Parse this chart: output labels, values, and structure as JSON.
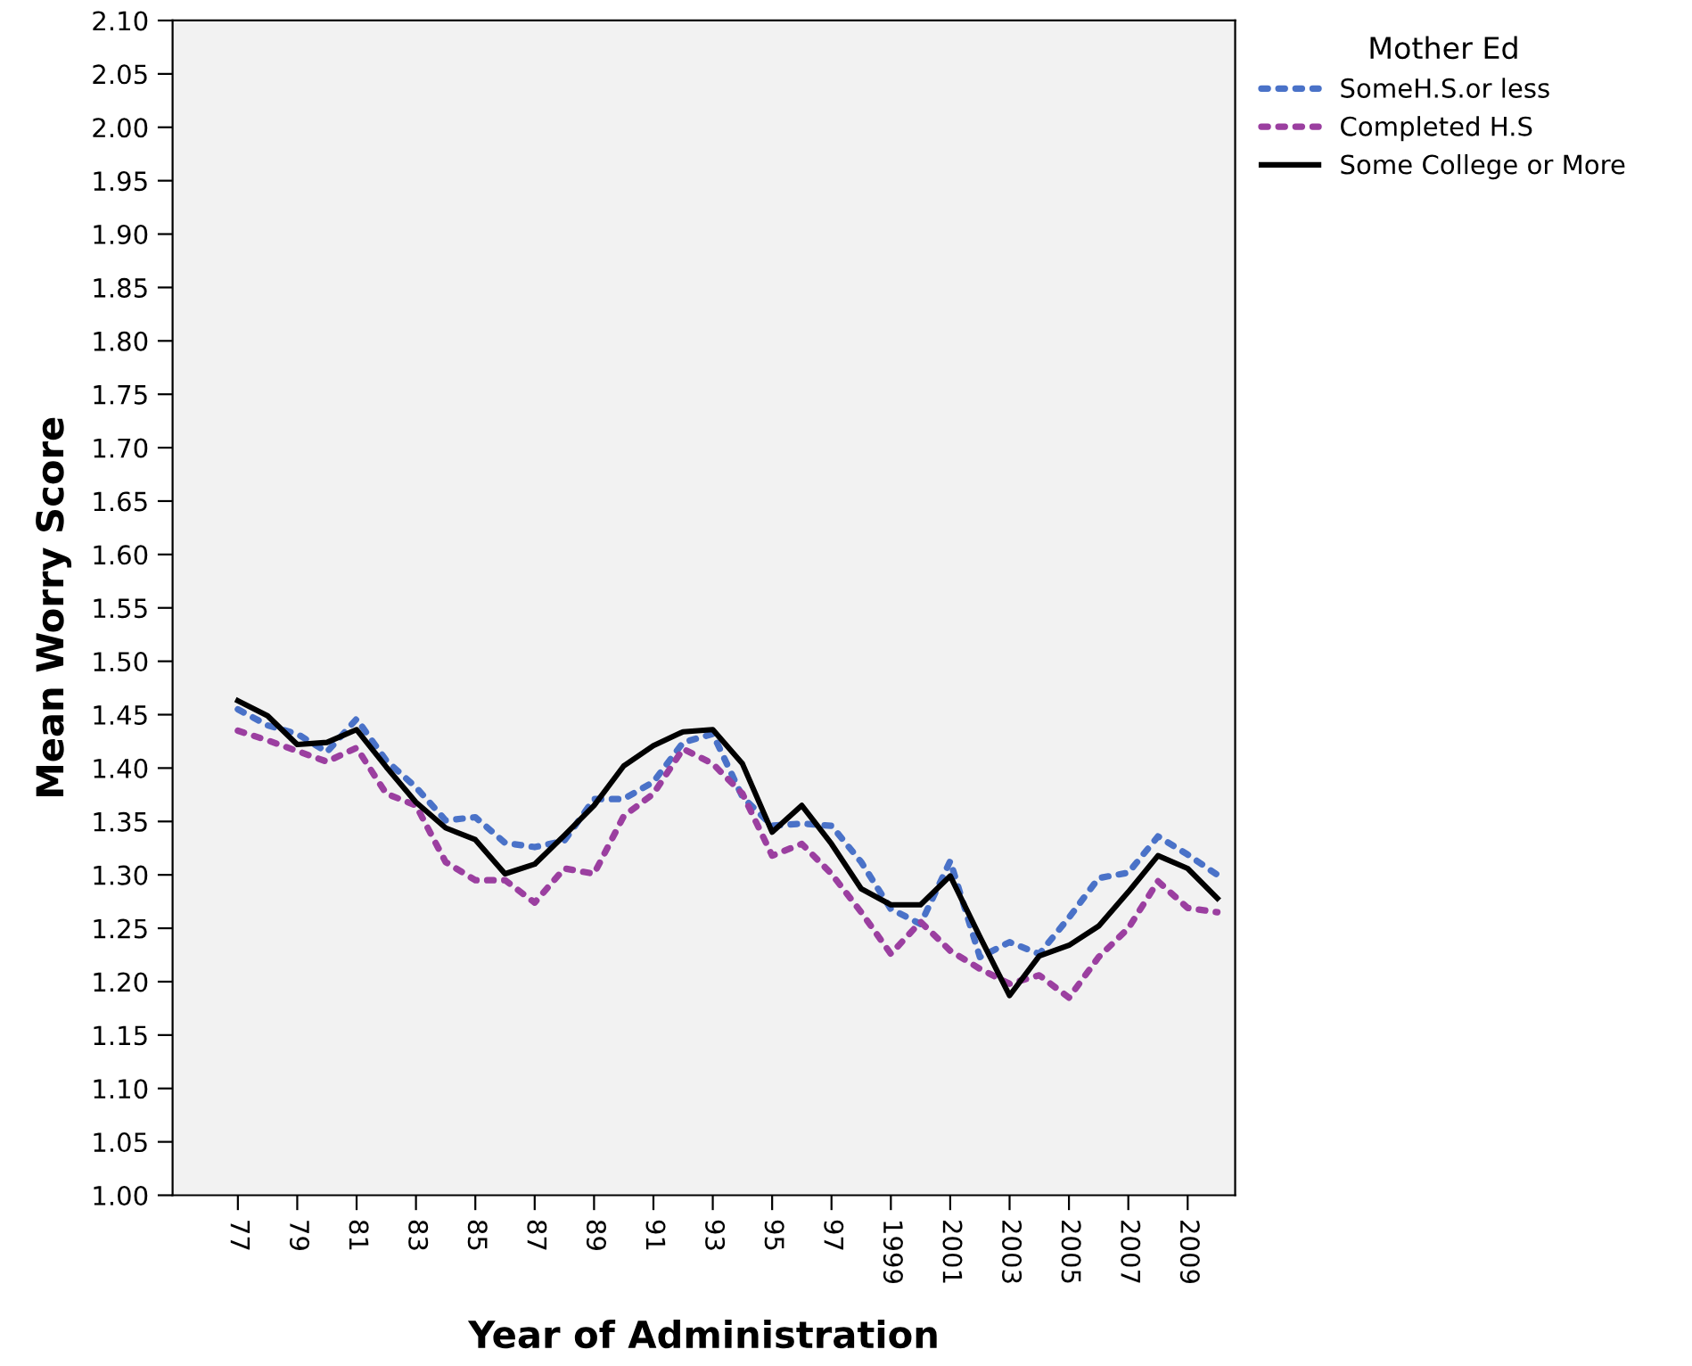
{
  "chart_data": {
    "type": "line",
    "xlabel": "Year of Administration",
    "ylabel": "Mean Worry Score",
    "legend_title": "Mother Ed",
    "categories": [
      "77",
      null,
      "79",
      null,
      "81",
      null,
      "83",
      null,
      "85",
      null,
      "87",
      null,
      "89",
      null,
      "91",
      null,
      "93",
      null,
      "95",
      null,
      "97",
      null,
      "1999",
      null,
      "2001",
      null,
      "2003",
      null,
      "2005",
      null,
      "2007",
      null,
      "2009",
      null
    ],
    "series": [
      {
        "name": "SomeH.S.or less",
        "color": "#4a72c8",
        "line_style": "dotted",
        "values": [
          1.455,
          1.44,
          1.432,
          1.415,
          1.446,
          1.407,
          1.382,
          1.351,
          1.354,
          1.33,
          1.326,
          1.332,
          1.371,
          1.371,
          1.387,
          1.424,
          1.432,
          1.373,
          1.346,
          1.348,
          1.346,
          1.312,
          1.268,
          1.254,
          1.313,
          1.223,
          1.237,
          1.226,
          1.26,
          1.297,
          1.302,
          1.336,
          1.319,
          1.3
        ]
      },
      {
        "name": "Completed H.S",
        "color": "#9b3fa0",
        "line_style": "dotted",
        "values": [
          1.435,
          1.426,
          1.416,
          1.406,
          1.419,
          1.376,
          1.365,
          1.312,
          1.295,
          1.295,
          1.274,
          1.306,
          1.301,
          1.355,
          1.376,
          1.418,
          1.404,
          1.376,
          1.318,
          1.329,
          1.301,
          1.265,
          1.226,
          1.256,
          1.229,
          1.212,
          1.198,
          1.206,
          1.185,
          1.223,
          1.25,
          1.294,
          1.269,
          1.265
        ]
      },
      {
        "name": "Some College or More",
        "color": "#000000",
        "line_style": "solid",
        "values": [
          1.463,
          1.449,
          1.422,
          1.424,
          1.436,
          1.401,
          1.368,
          1.344,
          1.333,
          1.301,
          1.31,
          1.337,
          1.365,
          1.402,
          1.421,
          1.434,
          1.436,
          1.404,
          1.34,
          1.365,
          1.329,
          1.287,
          1.272,
          1.272,
          1.299,
          1.242,
          1.187,
          1.224,
          1.234,
          1.252,
          1.284,
          1.318,
          1.306,
          1.278
        ]
      }
    ],
    "ylim": [
      1.0,
      2.1
    ],
    "yticks": [
      {
        "value": 1.0,
        "label": "1.00"
      },
      {
        "value": 1.05,
        "label": "1.05"
      },
      {
        "value": 1.1,
        "label": "1.10"
      },
      {
        "value": 1.15,
        "label": "1.15"
      },
      {
        "value": 1.2,
        "label": "1.20"
      },
      {
        "value": 1.25,
        "label": "1.25"
      },
      {
        "value": 1.3,
        "label": "1.30"
      },
      {
        "value": 1.35,
        "label": "1.35"
      },
      {
        "value": 1.4,
        "label": "1.40"
      },
      {
        "value": 1.45,
        "label": "1.45"
      },
      {
        "value": 1.5,
        "label": "1.50"
      },
      {
        "value": 1.55,
        "label": "1.55"
      },
      {
        "value": 1.6,
        "label": "1.60"
      },
      {
        "value": 1.65,
        "label": "1.65"
      },
      {
        "value": 1.7,
        "label": "1.70"
      },
      {
        "value": 1.75,
        "label": "1.75"
      },
      {
        "value": 1.8,
        "label": "1.80"
      },
      {
        "value": 1.85,
        "label": "1.85"
      },
      {
        "value": 1.9,
        "label": "1.90"
      },
      {
        "value": 1.95,
        "label": "1.95"
      },
      {
        "value": 2.0,
        "label": "2.00"
      },
      {
        "value": 2.05,
        "label": "2.05"
      },
      {
        "value": 2.1,
        "label": "2.10"
      }
    ],
    "grid": false,
    "legend": "top right",
    "marker": "none"
  }
}
